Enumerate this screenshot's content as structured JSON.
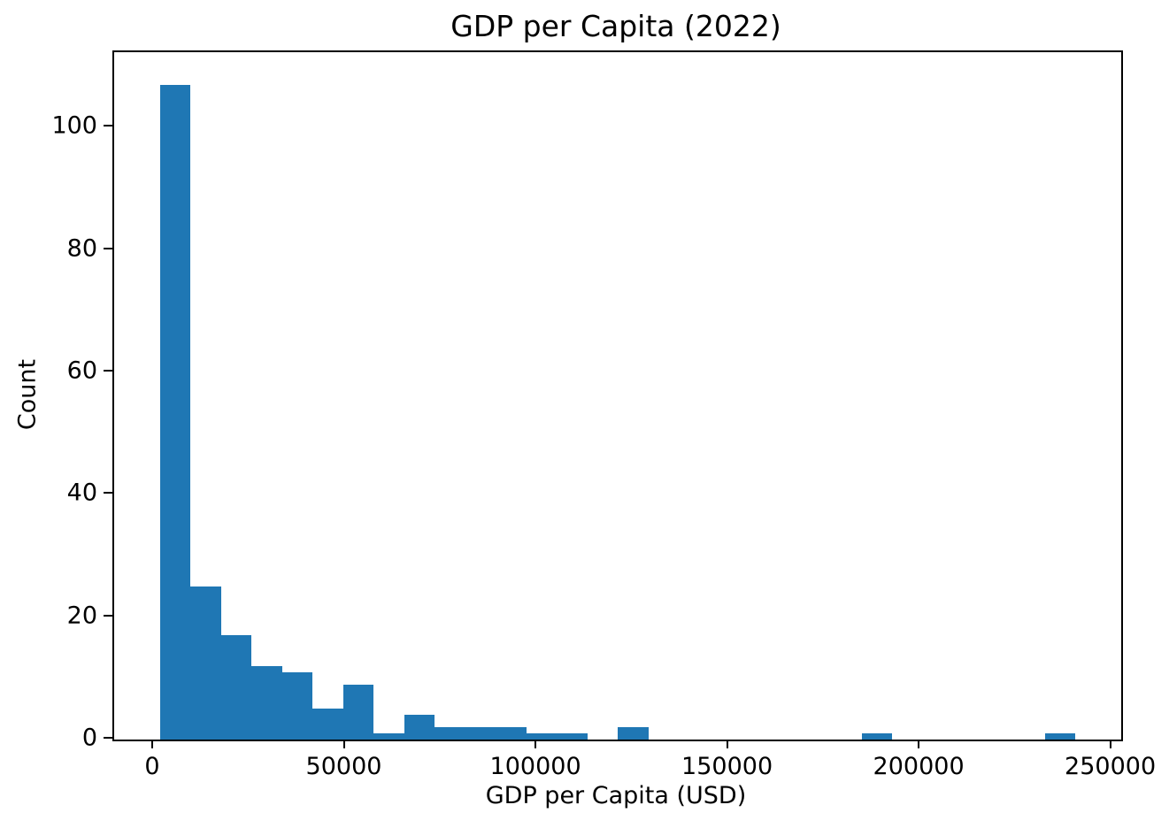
{
  "chart_data": {
    "type": "bar",
    "subtype": "histogram",
    "title": "GDP per Capita (2022)",
    "xlabel": "GDP per Capita (USD)",
    "ylabel": "Count",
    "bar_color": "#1f77b4",
    "grid": false,
    "legend": null,
    "n_bins": 30,
    "bin_start": 1550,
    "bin_width": 7963,
    "counts": [
      107,
      25,
      17,
      12,
      11,
      5,
      9,
      1,
      4,
      2,
      2,
      2,
      1,
      1,
      0,
      2,
      0,
      0,
      0,
      0,
      0,
      0,
      0,
      1,
      0,
      0,
      0,
      0,
      0,
      1
    ],
    "x_ticks": [
      0,
      50000,
      100000,
      150000,
      200000,
      250000
    ],
    "y_ticks": [
      0,
      20,
      40,
      60,
      80,
      100
    ],
    "xlim": [
      -10400,
      252400
    ],
    "ylim": [
      0,
      112.35
    ]
  }
}
